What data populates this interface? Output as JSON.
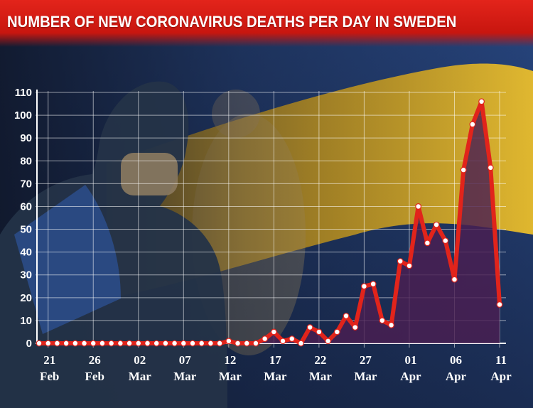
{
  "title": "NUMBER OF NEW CORONAVIRUS DEATHS PER DAY IN SWEDEN",
  "colors": {
    "title_bg": "#d81f16",
    "line": "#e1241b",
    "marker_fill": "#ffffff",
    "area_fill": "#4a1f52",
    "gridline": "#ffffff",
    "flag_blue": "#1f3f7a",
    "flag_yellow": "#e8b21e"
  },
  "chart_data": {
    "type": "line",
    "title": "NUMBER OF NEW CORONAVIRUS DEATHS PER DAY IN SWEDEN",
    "xlabel": "",
    "ylabel": "",
    "ylim": [
      0,
      110
    ],
    "yticks": [
      "0",
      "10",
      "20",
      "30",
      "40",
      "50",
      "60",
      "70",
      "80",
      "90",
      "100",
      "110"
    ],
    "grid": true,
    "area_fill": true,
    "x_tick_labels": [
      {
        "day": "21",
        "month": "Feb"
      },
      {
        "day": "26",
        "month": "Feb"
      },
      {
        "day": "02",
        "month": "Mar"
      },
      {
        "day": "07",
        "month": "Mar"
      },
      {
        "day": "12",
        "month": "Mar"
      },
      {
        "day": "17",
        "month": "Mar"
      },
      {
        "day": "22",
        "month": "Mar"
      },
      {
        "day": "27",
        "month": "Mar"
      },
      {
        "day": "01",
        "month": "Apr"
      },
      {
        "day": "06",
        "month": "Apr"
      },
      {
        "day": "11",
        "month": "Apr"
      }
    ],
    "x": [
      "20 Feb",
      "21 Feb",
      "22 Feb",
      "23 Feb",
      "24 Feb",
      "25 Feb",
      "26 Feb",
      "27 Feb",
      "28 Feb",
      "29 Feb",
      "01 Mar",
      "02 Mar",
      "03 Mar",
      "04 Mar",
      "05 Mar",
      "06 Mar",
      "07 Mar",
      "08 Mar",
      "09 Mar",
      "10 Mar",
      "11 Mar",
      "12 Mar",
      "13 Mar",
      "14 Mar",
      "15 Mar",
      "16 Mar",
      "17 Mar",
      "18 Mar",
      "19 Mar",
      "20 Mar",
      "21 Mar",
      "22 Mar",
      "23 Mar",
      "24 Mar",
      "25 Mar",
      "26 Mar",
      "27 Mar",
      "28 Mar",
      "29 Mar",
      "30 Mar",
      "31 Mar",
      "01 Apr",
      "02 Apr",
      "03 Apr",
      "04 Apr",
      "05 Apr",
      "06 Apr",
      "07 Apr",
      "08 Apr",
      "09 Apr",
      "10 Apr",
      "11 Apr"
    ],
    "series": [
      {
        "values": [
          0,
          0,
          0,
          0,
          0,
          0,
          0,
          0,
          0,
          0,
          0,
          0,
          0,
          0,
          0,
          0,
          0,
          0,
          0,
          0,
          0,
          1,
          0,
          0,
          0,
          2,
          5,
          1,
          2,
          0,
          7,
          5,
          1,
          5,
          12,
          7,
          25,
          26,
          10,
          8,
          36,
          34,
          60,
          44,
          52,
          45,
          28,
          76,
          96,
          106,
          77,
          17
        ]
      }
    ]
  }
}
